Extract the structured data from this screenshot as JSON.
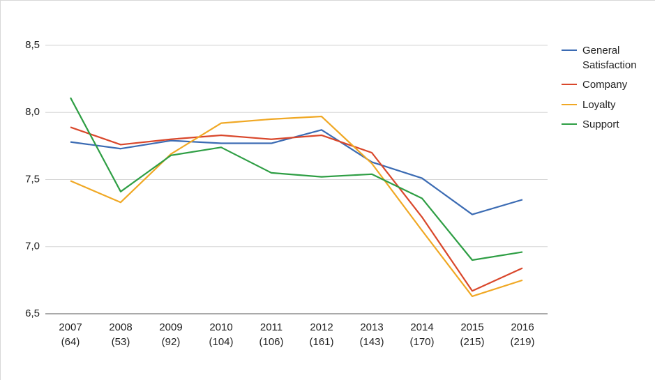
{
  "chart_data": {
    "type": "line",
    "categories": [
      "2007\n(64)",
      "2008\n(53)",
      "2009\n(92)",
      "2010\n(104)",
      "2011\n(106)",
      "2012\n(161)",
      "2013\n(143)",
      "2014\n(170)",
      "2015\n(215)",
      "2016\n(219)"
    ],
    "series": [
      {
        "name": "General Satisfaction",
        "color": "#3b6bb3",
        "values": [
          7.78,
          7.73,
          7.79,
          7.77,
          7.77,
          7.87,
          7.63,
          7.51,
          7.24,
          7.35
        ]
      },
      {
        "name": "Company",
        "color": "#d9472b",
        "values": [
          7.89,
          7.76,
          7.8,
          7.83,
          7.8,
          7.83,
          7.7,
          7.22,
          6.67,
          6.84
        ]
      },
      {
        "name": "Loyalty",
        "color": "#f0a824",
        "values": [
          7.49,
          7.33,
          7.69,
          7.92,
          7.95,
          7.97,
          7.62,
          7.12,
          6.63,
          6.75
        ]
      },
      {
        "name": "Support",
        "color": "#2e9e44",
        "values": [
          8.11,
          7.41,
          7.68,
          7.74,
          7.55,
          7.52,
          7.54,
          7.36,
          6.9,
          6.96
        ]
      }
    ],
    "ylim": [
      6.5,
      8.5
    ],
    "yticks": [
      {
        "value": 6.5,
        "label": "6,5"
      },
      {
        "value": 7.0,
        "label": "7,0"
      },
      {
        "value": 7.5,
        "label": "7,5"
      },
      {
        "value": 8.0,
        "label": "8,0"
      },
      {
        "value": 8.5,
        "label": "8,5"
      }
    ],
    "grid": true,
    "legend": "right"
  }
}
